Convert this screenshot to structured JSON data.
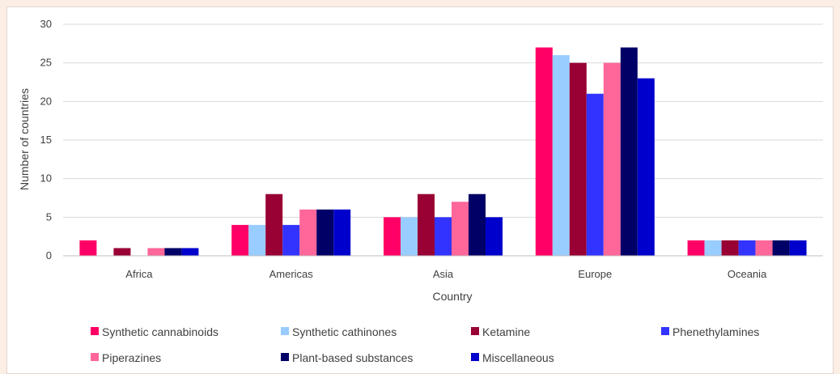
{
  "chart_data": {
    "type": "bar",
    "xlabel": "Country",
    "ylabel": "Number of countries",
    "ylim": [
      0,
      30
    ],
    "ytick_step": 5,
    "grid": true,
    "legend_position": "bottom",
    "categories": [
      "Africa",
      "Americas",
      "Asia",
      "Europe",
      "Oceania"
    ],
    "series": [
      {
        "name": "Synthetic cannabinoids",
        "color": "#ff0066",
        "values": [
          2,
          4,
          5,
          27,
          2
        ]
      },
      {
        "name": "Synthetic cathinones",
        "color": "#99ccff",
        "values": [
          0,
          4,
          5,
          26,
          2
        ]
      },
      {
        "name": "Ketamine",
        "color": "#990033",
        "values": [
          1,
          8,
          8,
          25,
          2
        ]
      },
      {
        "name": "Phenethylamines",
        "color": "#3333ff",
        "values": [
          0,
          4,
          5,
          21,
          2
        ]
      },
      {
        "name": "Piperazines",
        "color": "#ff6699",
        "values": [
          1,
          6,
          7,
          25,
          2
        ]
      },
      {
        "name": "Plant-based substances",
        "color": "#000066",
        "values": [
          1,
          6,
          8,
          27,
          2
        ]
      },
      {
        "name": "Miscellaneous",
        "color": "#0000cc",
        "values": [
          1,
          6,
          5,
          23,
          2
        ]
      }
    ]
  }
}
